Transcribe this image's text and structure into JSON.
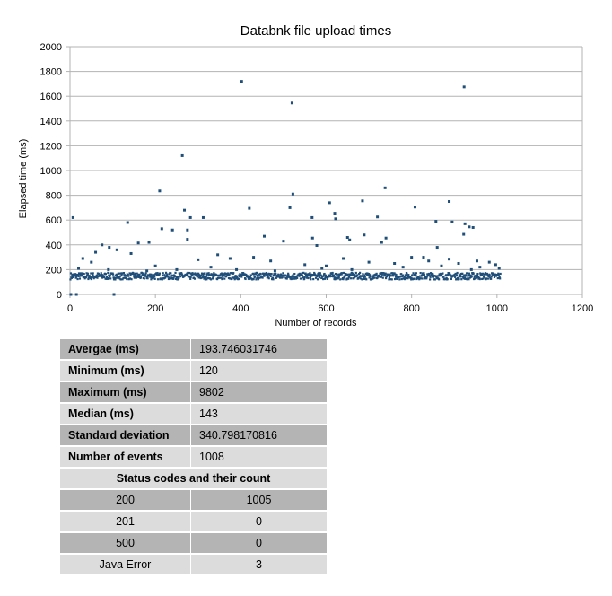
{
  "chart_data": {
    "type": "scatter",
    "title": "Databnk file upload times",
    "xlabel": "Number of records",
    "ylabel": "Elapsed time (ms)",
    "xlim": [
      0,
      1200
    ],
    "ylim": [
      0,
      2000
    ],
    "x_ticks": [
      "0",
      "200",
      "400",
      "600",
      "800",
      "1000",
      "1200"
    ],
    "y_ticks": [
      "0",
      "200",
      "400",
      "600",
      "800",
      "1000",
      "1200",
      "1400",
      "1600",
      "1800",
      "2000"
    ],
    "grid": "horizontal",
    "marker_color": "#1f4e79",
    "baseline_band": {
      "x_range": [
        1,
        1008
      ],
      "y_range": [
        120,
        175
      ]
    },
    "points": [
      [
        402,
        1720
      ],
      [
        520,
        1545
      ],
      [
        923,
        1675
      ],
      [
        263,
        1120
      ],
      [
        210,
        835
      ],
      [
        522,
        810
      ],
      [
        738,
        860
      ],
      [
        888,
        750
      ],
      [
        420,
        695
      ],
      [
        515,
        700
      ],
      [
        608,
        740
      ],
      [
        685,
        755
      ],
      [
        808,
        705
      ],
      [
        268,
        680
      ],
      [
        620,
        655
      ],
      [
        135,
        580
      ],
      [
        7,
        620
      ],
      [
        282,
        620
      ],
      [
        312,
        620
      ],
      [
        567,
        620
      ],
      [
        622,
        610
      ],
      [
        720,
        625
      ],
      [
        857,
        590
      ],
      [
        895,
        585
      ],
      [
        925,
        570
      ],
      [
        935,
        545
      ],
      [
        944,
        540
      ],
      [
        215,
        530
      ],
      [
        240,
        520
      ],
      [
        275,
        520
      ],
      [
        455,
        470
      ],
      [
        568,
        455
      ],
      [
        650,
        460
      ],
      [
        740,
        455
      ],
      [
        730,
        420
      ],
      [
        689,
        480
      ],
      [
        922,
        485
      ],
      [
        500,
        430
      ],
      [
        655,
        440
      ],
      [
        275,
        445
      ],
      [
        160,
        415
      ],
      [
        185,
        420
      ],
      [
        578,
        395
      ],
      [
        860,
        380
      ],
      [
        92,
        380
      ],
      [
        110,
        360
      ],
      [
        75,
        400
      ],
      [
        60,
        340
      ],
      [
        143,
        330
      ],
      [
        346,
        320
      ],
      [
        375,
        290
      ],
      [
        30,
        290
      ],
      [
        800,
        300
      ],
      [
        828,
        300
      ],
      [
        888,
        285
      ],
      [
        953,
        270
      ],
      [
        982,
        260
      ],
      [
        997,
        240
      ],
      [
        50,
        260
      ],
      [
        300,
        280
      ],
      [
        430,
        300
      ],
      [
        470,
        270
      ],
      [
        640,
        290
      ],
      [
        700,
        260
      ],
      [
        760,
        250
      ],
      [
        840,
        270
      ],
      [
        910,
        250
      ],
      [
        200,
        230
      ],
      [
        330,
        220
      ],
      [
        550,
        240
      ],
      [
        600,
        230
      ],
      [
        870,
        230
      ],
      [
        960,
        220
      ],
      [
        20,
        210
      ],
      [
        90,
        200
      ],
      [
        180,
        190
      ],
      [
        250,
        200
      ],
      [
        390,
        200
      ],
      [
        480,
        190
      ],
      [
        590,
        210
      ],
      [
        660,
        200
      ],
      [
        780,
        220
      ],
      [
        940,
        200
      ],
      [
        1005,
        210
      ],
      [
        2,
        0
      ],
      [
        15,
        0
      ],
      [
        103,
        0
      ]
    ]
  },
  "stats": {
    "rows": [
      {
        "label": "Avergae (ms)",
        "value": "193.746031746"
      },
      {
        "label": "Minimum (ms)",
        "value": "120"
      },
      {
        "label": "Maximum (ms)",
        "value": "9802"
      },
      {
        "label": "Median (ms)",
        "value": "143"
      },
      {
        "label": "Standard deviation",
        "value": "340.798170816"
      },
      {
        "label": "Number of events",
        "value": "1008"
      }
    ],
    "status_header": "Status codes and their count",
    "status_codes": [
      {
        "code": "200",
        "count": "1005"
      },
      {
        "code": "201",
        "count": "0"
      },
      {
        "code": "500",
        "count": "0"
      },
      {
        "code": "Java Error",
        "count": "3"
      }
    ]
  }
}
